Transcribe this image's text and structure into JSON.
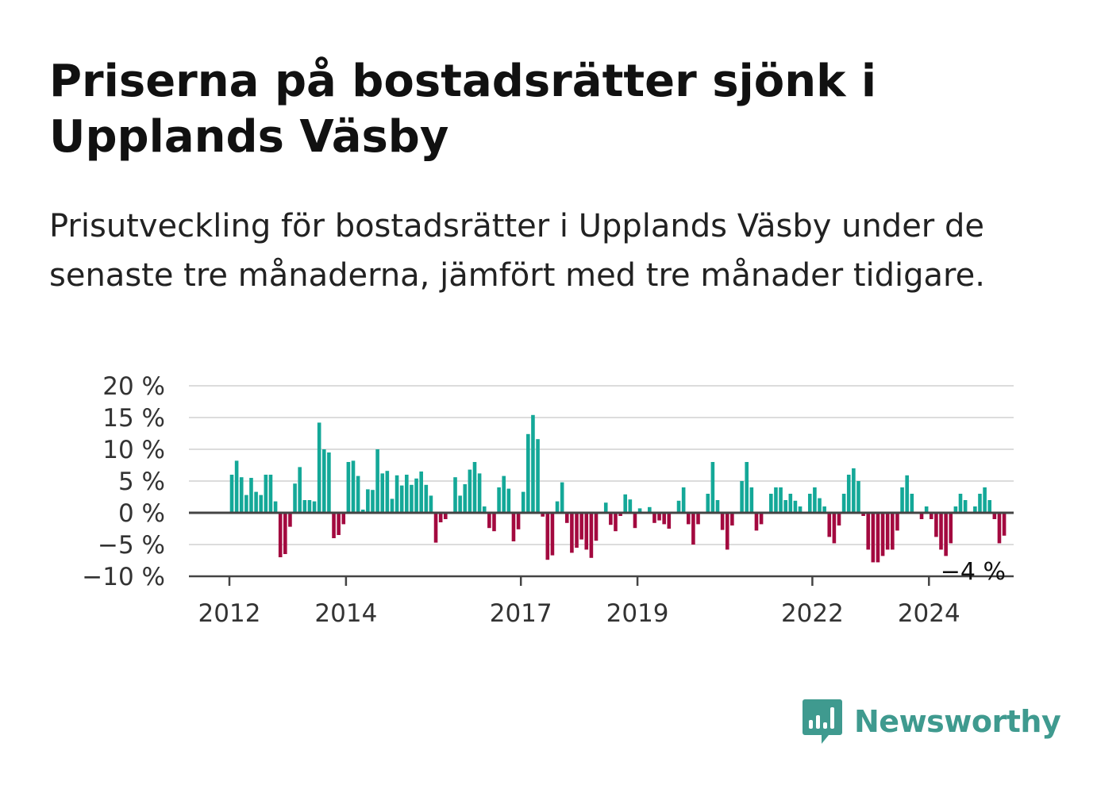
{
  "title": "Priserna på bostadsrätter sjönk i Upplands Väsby",
  "subtitle": "Prisutveckling för bostadsrätter i Upplands Väsby under de senaste tre månaderna, jämfört med tre månader tidigare.",
  "brand": "Newsworthy",
  "colors": {
    "positive": "#14a898",
    "negative": "#a3093f",
    "grid": "#dcdcdc",
    "axis": "#444444"
  },
  "chart_data": {
    "type": "bar",
    "x_start": "2012-01",
    "ylim": [
      -10,
      20
    ],
    "y_ticks": [
      -10,
      -5,
      0,
      5,
      10,
      15,
      20
    ],
    "y_tick_labels": [
      "−10 %",
      "−5 %",
      "0 %",
      "5 %",
      "10 %",
      "15 %",
      "20 %"
    ],
    "x_tick_labels": [
      {
        "label": "2012",
        "date": "2012-01"
      },
      {
        "label": "2014",
        "date": "2014-01"
      },
      {
        "label": "2017",
        "date": "2017-01"
      },
      {
        "label": "2019",
        "date": "2019-01"
      },
      {
        "label": "2022",
        "date": "2022-01"
      },
      {
        "label": "2024",
        "date": "2024-01"
      }
    ],
    "values": [
      6,
      8.2,
      5.6,
      2.8,
      5.5,
      3.3,
      2.8,
      6,
      6,
      1.8,
      -7,
      -6.5,
      -2.2,
      4.6,
      7.2,
      2,
      2,
      1.8,
      14.2,
      10,
      9.5,
      -4,
      -3.5,
      -1.8,
      8,
      8.2,
      5.8,
      0.5,
      3.7,
      3.6,
      10,
      6.2,
      6.6,
      2.2,
      5.9,
      4.3,
      6,
      4.4,
      5.4,
      6.5,
      4.4,
      2.7,
      -4.7,
      -1.5,
      -1,
      0,
      5.6,
      2.7,
      4.5,
      6.8,
      8,
      6.2,
      1,
      -2.4,
      -2.9,
      4,
      5.8,
      3.8,
      -4.5,
      -2.6,
      3.3,
      12.4,
      15.4,
      11.6,
      -0.6,
      -7.4,
      -6.7,
      1.8,
      4.8,
      -1.6,
      -6.3,
      -5.5,
      -4.2,
      -5.8,
      -7.1,
      -4.4,
      0,
      1.6,
      -1.9,
      -2.9,
      -0.5,
      2.9,
      2.1,
      -2.4,
      0.7,
      0,
      0.9,
      -1.6,
      -1.2,
      -1.8,
      -2.5,
      0,
      1.9,
      4,
      -1.8,
      -5,
      -1.8,
      0,
      3,
      8,
      2,
      -2.7,
      -5.8,
      -2,
      0,
      5,
      8,
      4,
      -2.8,
      -1.8,
      0,
      3,
      4,
      4,
      2,
      3,
      1.9,
      1,
      0,
      3,
      4,
      2.3,
      1,
      -3.8,
      -4.8,
      -2,
      3,
      6,
      7,
      5,
      -0.5,
      -5.8,
      -7.8,
      -7.8,
      -6.8,
      -5.8,
      -5.8,
      -2.8,
      4,
      5.9,
      3,
      0,
      -1,
      1,
      -1,
      -3.8,
      -5.8,
      -6.8,
      -4.8,
      1,
      3,
      2,
      0,
      1,
      3,
      4,
      2,
      -1,
      -4.8,
      -3.6
    ],
    "last_value_label": "−4 %"
  }
}
